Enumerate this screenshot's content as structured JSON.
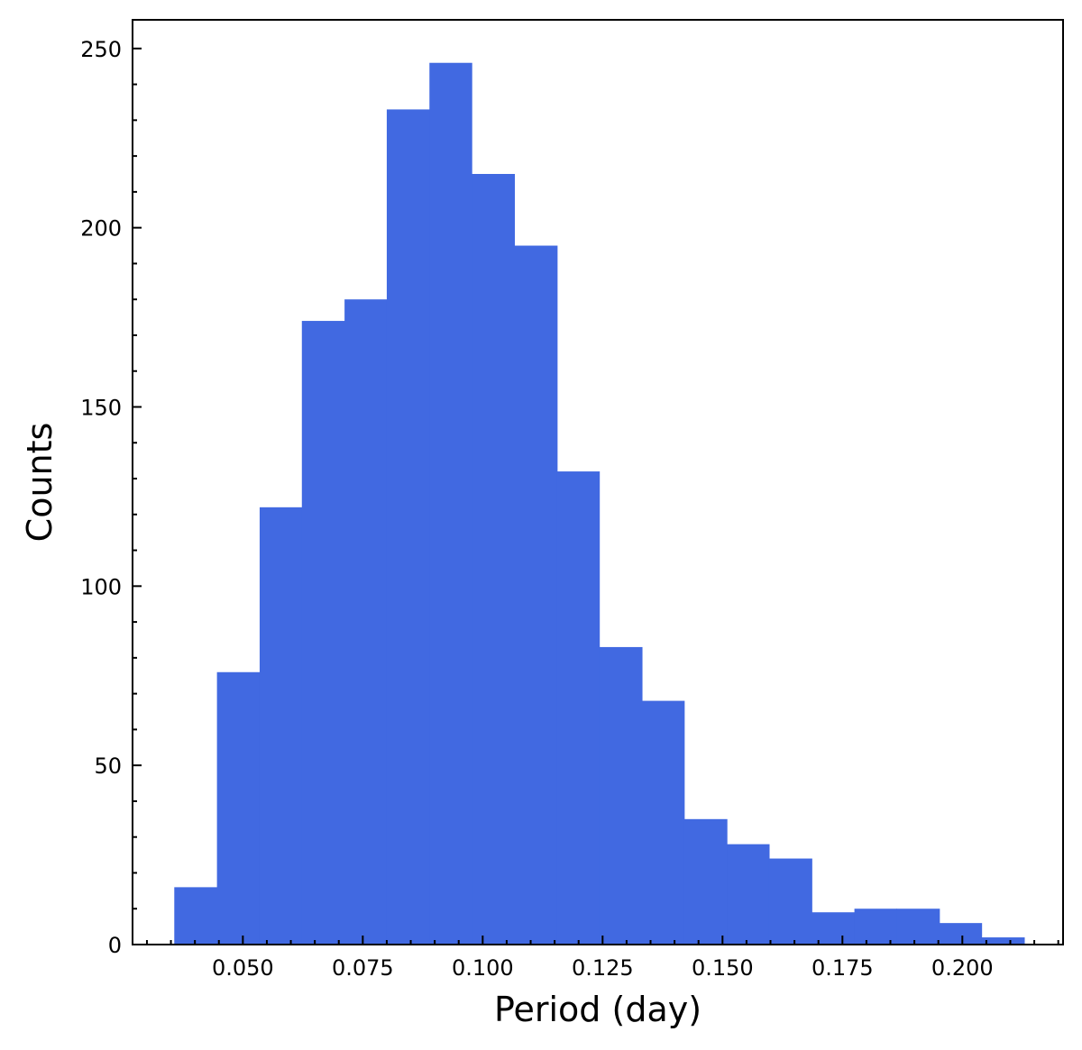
{
  "chart_data": {
    "type": "bar",
    "title": "",
    "xlabel": "Period (day)",
    "ylabel": "Counts",
    "bar_color": "#4169e1",
    "xlim": [
      0.027,
      0.221
    ],
    "ylim": [
      0,
      258
    ],
    "xticks": [
      0.05,
      0.075,
      0.1,
      0.125,
      0.15,
      0.175,
      0.2
    ],
    "xtick_labels": [
      "0.050",
      "0.075",
      "0.100",
      "0.125",
      "0.150",
      "0.175",
      "0.200"
    ],
    "yticks": [
      0,
      50,
      100,
      150,
      200,
      250
    ],
    "ytick_labels": [
      "0",
      "50",
      "100",
      "150",
      "200",
      "250"
    ],
    "bin_edges": [
      0.0357,
      0.0446,
      0.0535,
      0.0623,
      0.0712,
      0.08,
      0.0889,
      0.0977,
      0.1066,
      0.1155,
      0.1243,
      0.1332,
      0.142,
      0.1509,
      0.1597,
      0.1686,
      0.1775,
      0.1863,
      0.1952,
      0.204,
      0.2129
    ],
    "counts": [
      16,
      76,
      122,
      174,
      180,
      233,
      246,
      215,
      195,
      132,
      83,
      68,
      35,
      28,
      24,
      9,
      10,
      10,
      6,
      2
    ],
    "grid": false,
    "legend": "none"
  }
}
